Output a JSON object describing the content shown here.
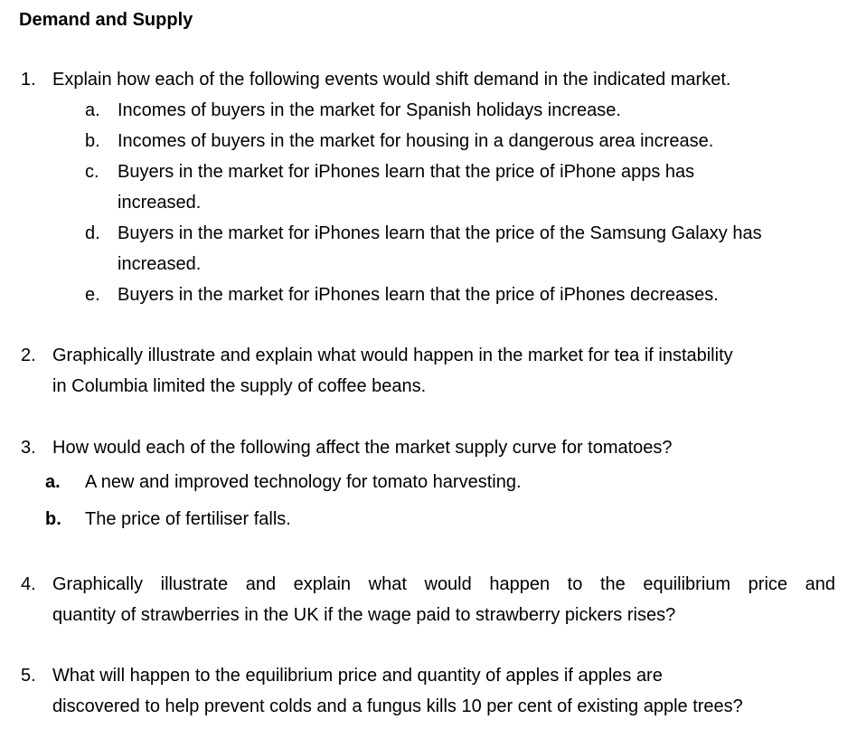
{
  "title": "Demand and Supply",
  "q1": {
    "number": "1.",
    "text": "Explain how each of the following events would shift demand in the indicated market.",
    "items": [
      {
        "marker": "a.",
        "line1": "Incomes of buyers in the market for Spanish holidays increase."
      },
      {
        "marker": "b.",
        "line1": "Incomes of buyers in the market for housing in a dangerous area increase."
      },
      {
        "marker": "c.",
        "line1": "Buyers in the market for iPhones learn that the price of iPhone apps has",
        "line2": "increased."
      },
      {
        "marker": "d.",
        "line1": "Buyers in the market for iPhones learn that the price of the Samsung Galaxy has",
        "line2": "increased."
      },
      {
        "marker": "e.",
        "line1": "Buyers in the market for iPhones learn that the price of iPhones decreases."
      }
    ]
  },
  "q2": {
    "number": "2.",
    "line1": "Graphically illustrate and explain what would happen in the market for tea if instability",
    "line2": "in Columbia limited the supply of coffee beans."
  },
  "q3": {
    "number": "3.",
    "text": "How would each of the following affect the market supply curve for tomatoes?",
    "items": [
      {
        "marker": "a.",
        "text": "A new and improved technology for tomato harvesting."
      },
      {
        "marker": "b.",
        "text": "The price of fertiliser falls."
      }
    ]
  },
  "q4": {
    "number": "4.",
    "line1": "Graphically illustrate and explain what would happen to the equilibrium price and",
    "line2": "quantity of strawberries in the UK if the wage paid to strawberry pickers rises?"
  },
  "q5": {
    "number": "5.",
    "line1": "What will happen to the equilibrium price and quantity of apples if apples are",
    "line2": "discovered to help prevent colds and a fungus kills 10 per cent of existing apple trees?"
  }
}
